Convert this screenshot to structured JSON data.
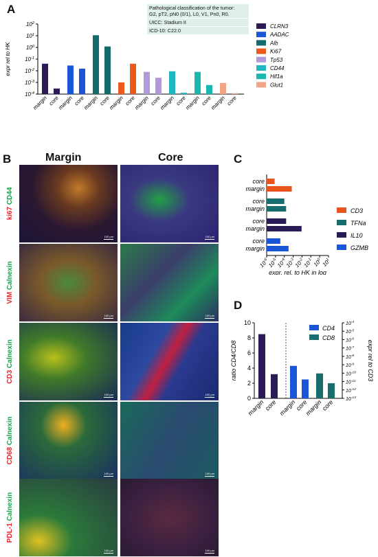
{
  "panels": {
    "a": "A",
    "b": "B",
    "c": "C",
    "d": "D"
  },
  "info_lines": [
    "Pathological classification of the tumor:",
    "G2, pT2, pN0 (0/1), L0, V1, Pn0, R0.",
    "UICC: Stadium II",
    "ICD-10: C22.0"
  ],
  "chart_data": [
    {
      "id": "A",
      "type": "bar",
      "yscale": "log",
      "ylabel": "expr rel to HK",
      "ylim_exp": [
        -4,
        2
      ],
      "ytick_labels": [
        "10^2",
        "10^1",
        "10^0",
        "10^-1",
        "10^-2",
        "10^-3",
        "10^-4"
      ],
      "categories": [
        "margin",
        "core"
      ],
      "series": [
        {
          "name": "CLRN3",
          "color": "#2e1a56",
          "values": [
            0.04,
            0.0003
          ]
        },
        {
          "name": "AADAC",
          "color": "#1a55d6",
          "values": [
            0.028,
            0.015
          ]
        },
        {
          "name": "Alb",
          "color": "#146b6b",
          "values": [
            11,
            1.2
          ]
        },
        {
          "name": "Ki67",
          "color": "#ec5a1b",
          "values": [
            0.001,
            0.04
          ]
        },
        {
          "name": "Tp53",
          "color": "#b299d8",
          "values": [
            0.008,
            0.0025
          ]
        },
        {
          "name": "CD44",
          "color": "#1fb8c2",
          "values": [
            0.009,
            0.00013
          ]
        },
        {
          "name": "Hif1a",
          "color": "#18b8b0",
          "values": [
            0.008,
            0.0006
          ]
        },
        {
          "name": "Glut1",
          "color": "#f2a585",
          "values": [
            0.0009,
            0.00012
          ]
        }
      ]
    },
    {
      "id": "C",
      "type": "bar",
      "orientation": "horizontal",
      "xscale": "log",
      "xlabel": "expr. rel. to HK in log",
      "xlim_exp": [
        -6,
        1
      ],
      "xtick_labels": [
        "10^-6",
        "10^-5",
        "10^-4",
        "10^-3",
        "10^-2",
        "10^-1",
        "10^0",
        "10^1"
      ],
      "categories": [
        "core",
        "margin"
      ],
      "series": [
        {
          "name": "CD3",
          "color": "#e8561e",
          "values": [
            8e-06,
            0.0007
          ]
        },
        {
          "name": "TFNa",
          "color": "#1a6d6d",
          "values": [
            0.0001,
            0.00016
          ]
        },
        {
          "name": "IL10",
          "color": "#2b1b57",
          "values": [
            0.00016,
            0.009
          ]
        },
        {
          "name": "GZMB",
          "color": "#1a55d6",
          "values": [
            3.5e-05,
            0.0003
          ]
        }
      ]
    },
    {
      "id": "D",
      "type": "bar",
      "ylabel_left": "ratio CD4/CD8",
      "ylabel_right": "expr rel to CD3",
      "ylim_left": [
        0,
        10
      ],
      "yticks_left": [
        "0",
        "2",
        "4",
        "6",
        "8",
        "10"
      ],
      "yticks_right": [
        "10^-13",
        "10^-12",
        "10^-11",
        "10^-10",
        "10^-9",
        "10^-8",
        "10^-7",
        "10^-6",
        "10^-5",
        "10^-4"
      ],
      "ratio_bars": {
        "categories": [
          "margin",
          "core"
        ],
        "values": [
          8.5,
          3.2
        ],
        "color": "#2b1b57"
      },
      "categories": [
        "margin",
        "core"
      ],
      "series": [
        {
          "name": "CD4",
          "color": "#1a55d6",
          "values": [
            4.3,
            2.5
          ]
        },
        {
          "name": "CD8",
          "color": "#1a6d6d",
          "values": [
            3.3,
            2.0
          ]
        }
      ]
    }
  ],
  "micrographs": {
    "col_titles": [
      "Margin",
      "Core"
    ],
    "rows": [
      {
        "red": "ki67",
        "green": "CD44"
      },
      {
        "red": "VIM",
        "green": "Calnexin"
      },
      {
        "red": "CD3",
        "green": "Calnexin"
      },
      {
        "red": "CD68",
        "green": "Calnexin"
      },
      {
        "red": "PDL-1",
        "green": "Calnexin"
      }
    ],
    "scale_text": "100 µm",
    "colors": {
      "red": "#e3262c",
      "green": "#17a24a"
    }
  }
}
